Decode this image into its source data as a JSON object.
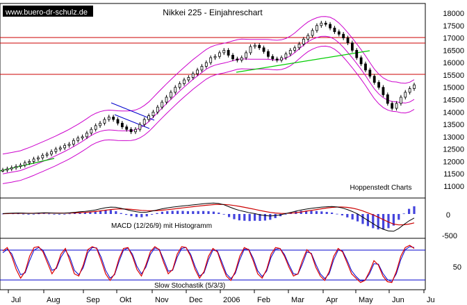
{
  "source": "www.buero-dr-schulz.de",
  "credit": "Hoppenstedt Charts",
  "chart_data": [
    {
      "type": "candlestick",
      "title": "Nikkei 225 - Einjahreschart",
      "ylim": [
        11000,
        18200
      ],
      "ticks": [
        18000,
        17500,
        17000,
        16500,
        16000,
        15500,
        15000,
        14500,
        14000,
        13500,
        13000,
        12500,
        12000,
        11500,
        11000
      ],
      "x_labels": [
        "Jul",
        "Aug",
        "Sep",
        "Okt",
        "Nov",
        "Dec",
        "2006",
        "Feb",
        "Mar",
        "Apr",
        "May",
        "Jun",
        "Ju"
      ],
      "series": [
        {
          "values": [
            11650,
            11700,
            11750,
            11800,
            11850,
            11950,
            12000,
            12100,
            12150,
            12250,
            12300,
            12400,
            12500,
            12550,
            12650,
            12700,
            12850,
            12950,
            13000,
            13150,
            13300,
            13450,
            13550,
            13700,
            13800,
            13700,
            13550,
            13400,
            13300,
            13200,
            13300,
            13500,
            13700,
            13850,
            14000,
            14200,
            14400,
            14600,
            14800,
            15000,
            15150,
            15300,
            15400,
            15550,
            15700,
            15850,
            16000,
            16200,
            16250,
            16400,
            16500,
            16300,
            16150,
            16100,
            16200,
            16400,
            16650,
            16700,
            16600,
            16450,
            16250,
            16150,
            16100,
            16200,
            16350,
            16500,
            16600,
            16750,
            16950,
            17100,
            17300,
            17500,
            17600,
            17550,
            17400,
            17250,
            17150,
            17000,
            16800,
            16500,
            16200,
            15950,
            15700,
            15450,
            15200,
            15000,
            14700,
            14350,
            14150,
            14350,
            14600,
            14800,
            14950,
            15100
          ]
        }
      ],
      "indicators": [
        {
          "name": "Bollinger Bands"
        },
        {
          "name": "Trendlines"
        },
        {
          "name": "Horizontal lines"
        }
      ]
    },
    {
      "type": "line",
      "title": "MACD (12/26/9) mit Histogramm",
      "ticks": [
        0,
        -500
      ],
      "series": [
        {
          "values": [
            10,
            18,
            22,
            25,
            20,
            15,
            18,
            25,
            30,
            28,
            22,
            18,
            20,
            30,
            42,
            55,
            65,
            80,
            100,
            130,
            155,
            170,
            165,
            140,
            110,
            80,
            55,
            40,
            45,
            70,
            100,
            130,
            150,
            170,
            185,
            200,
            210,
            225,
            240,
            255,
            265,
            270,
            260,
            230,
            180,
            130,
            90,
            60,
            30,
            10,
            -20,
            -40,
            -50,
            -40,
            -20,
            10,
            40,
            70,
            100,
            120,
            140,
            155,
            170,
            180,
            185,
            175,
            150,
            110,
            60,
            0,
            -80,
            -160,
            -240,
            -320,
            -380,
            -420,
            -430,
            -360,
            -260,
            -170,
            -100
          ]
        },
        {
          "values": [
            5,
            10,
            15,
            18,
            18,
            17,
            17,
            19,
            22,
            23,
            23,
            22,
            21,
            24,
            28,
            34,
            40,
            50,
            62,
            78,
            95,
            110,
            122,
            126,
            123,
            114,
            102,
            90,
            82,
            80,
            85,
            95,
            107,
            121,
            136,
            152,
            167,
            181,
            195,
            209,
            222,
            233,
            238,
            237,
            228,
            211,
            189,
            165,
            140,
            115,
            88,
            62,
            40,
            24,
            15,
            14,
            20,
            32,
            50,
            70,
            90,
            110,
            130,
            148,
            163,
            172,
            172,
            163,
            145,
            115,
            75,
            28,
            -20,
            -80,
            -140,
            -200,
            -250,
            -270,
            -268,
            -250,
            -220
          ]
        }
      ]
    },
    {
      "type": "line",
      "title": "Slow Stochastik (5/3/3)",
      "ticks": [
        50
      ],
      "series": [
        {
          "values": [
            82,
            90,
            70,
            40,
            20,
            35,
            70,
            90,
            92,
            80,
            55,
            30,
            45,
            75,
            88,
            60,
            30,
            25,
            50,
            85,
            92,
            88,
            60,
            30,
            15,
            30,
            65,
            88,
            90,
            70,
            40,
            25,
            50,
            80,
            92,
            85,
            55,
            30,
            40,
            75,
            92,
            90,
            70,
            40,
            20,
            35,
            70,
            88,
            80,
            50,
            25,
            15,
            35,
            70,
            90,
            85,
            60,
            30,
            20,
            40,
            75,
            90,
            88,
            70,
            45,
            25,
            30,
            60,
            85,
            75,
            45,
            25,
            15,
            35,
            70,
            88,
            80,
            55,
            30,
            20,
            10,
            15,
            35,
            60,
            50,
            25,
            12,
            10,
            35,
            70,
            90,
            95,
            88
          ]
        },
        {
          "values": [
            78,
            86,
            76,
            50,
            28,
            32,
            60,
            84,
            90,
            84,
            62,
            38,
            42,
            68,
            84,
            68,
            38,
            28,
            44,
            78,
            90,
            89,
            68,
            38,
            20,
            28,
            58,
            84,
            89,
            75,
            47,
            30,
            45,
            74,
            89,
            86,
            62,
            36,
            38,
            68,
            88,
            90,
            75,
            47,
            25,
            32,
            62,
            84,
            82,
            57,
            30,
            19,
            31,
            62,
            86,
            86,
            66,
            37,
            24,
            36,
            68,
            86,
            88,
            74,
            51,
            30,
            29,
            52,
            80,
            77,
            52,
            30,
            19,
            30,
            62,
            84,
            82,
            61,
            37,
            24,
            14,
            15,
            30,
            53,
            52,
            31,
            17,
            12,
            30,
            62,
            85,
            92,
            90
          ]
        }
      ]
    }
  ]
}
